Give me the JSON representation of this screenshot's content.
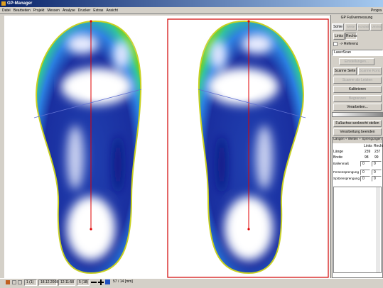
{
  "window": {
    "title": "GP-Manager"
  },
  "menu": [
    "Datei",
    "Bearbeiten",
    "Projekt",
    "Messen",
    "Analyse",
    "Drucker",
    "Extras",
    "Ansicht"
  ],
  "menu_right": "Progra",
  "panel": {
    "title": "GP Fußvermessung",
    "tabs": [
      "Sohle",
      "Weite",
      "Kontakt",
      "Umriss"
    ],
    "sides": [
      "Links",
      "Rechts"
    ],
    "reference": "-> Referenz",
    "scanner": "LaserScan",
    "settings": "Einstellungen...",
    "scan_buttons": [
      "Scanne Seite",
      "Scanne Kont."
    ],
    "last_button": "Scanne als Leisten",
    "buttons": [
      "Kalibrieren",
      "Begrenzen",
      "Verarbeiten..."
    ],
    "axis_button": "Fußachse senkrecht stellen",
    "finish_button": "Verarbeitung beenden"
  },
  "measurements": {
    "title": "Längen + Weiten + Sprengungen",
    "columns": [
      "Links",
      "Rechts"
    ],
    "rows": [
      {
        "label": "Länge",
        "left": 239,
        "right": 237
      },
      {
        "label": "Breite",
        "left": 98,
        "right": 99
      }
    ],
    "inputs": [
      {
        "label": "Ballenmaß",
        "left": 0,
        "right": 0
      },
      {
        "label": "Fersensprengung",
        "left": 0,
        "right": 0
      },
      {
        "label": "Spitzensprengung",
        "left": 0,
        "right": 0
      }
    ]
  },
  "status": {
    "record": "1 (1)",
    "date": "18.12.2008",
    "time": "12:11:58",
    "page": "5 (18)",
    "position": "57 / 14 [mm]"
  }
}
